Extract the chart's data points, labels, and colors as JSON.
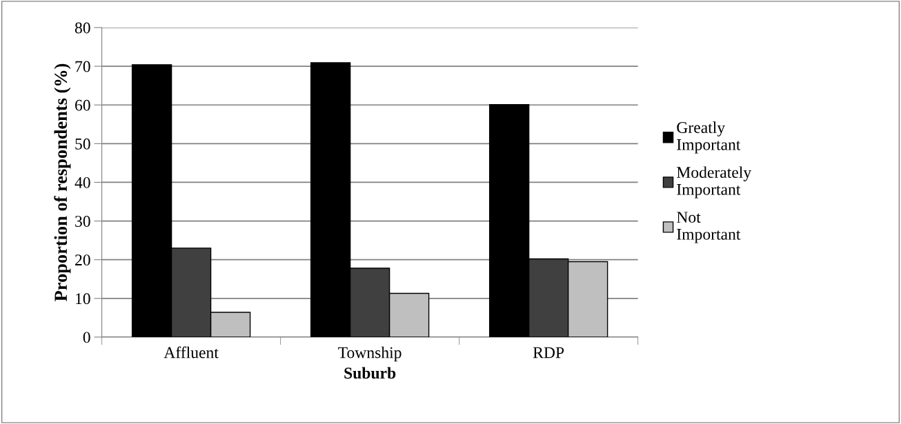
{
  "chart_data": {
    "type": "bar",
    "xlabel": "Suburb",
    "ylabel": "Proportion of respondents (%)",
    "categories": [
      "Affluent",
      "Township",
      "RDP"
    ],
    "series": [
      {
        "name": "Greatly Important",
        "color": "#000000",
        "values": [
          70.4,
          70.9,
          60.1
        ]
      },
      {
        "name": "Moderately Important",
        "color": "#404040",
        "values": [
          23.0,
          17.8,
          20.2
        ]
      },
      {
        "name": "Not Important",
        "color": "#bfbfbf",
        "values": [
          6.4,
          11.3,
          19.5
        ]
      }
    ],
    "ylim": [
      0,
      80
    ],
    "yticks": [
      0,
      10,
      20,
      30,
      40,
      50,
      60,
      70,
      80
    ],
    "grid": "y",
    "legend": "right"
  }
}
